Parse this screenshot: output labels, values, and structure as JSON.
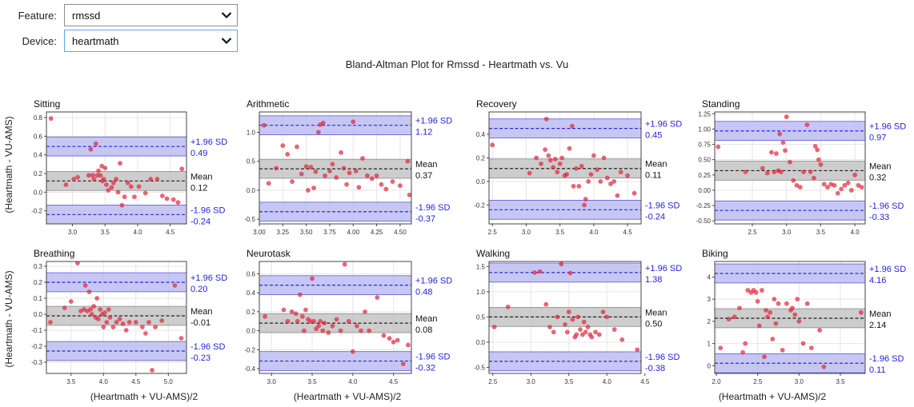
{
  "controls": {
    "feature": {
      "label": "Feature:",
      "value": "rmssd"
    },
    "device": {
      "label": "Device:",
      "value": "heartmath"
    }
  },
  "figure": {
    "suptitle": "Bland-Altman Plot for Rmssd - Heartmath vs. Vu",
    "ylabel": "(Heartmath - VU-AMS)",
    "xlabel": "(Heartmath + VU-AMS)/2"
  },
  "colors": {
    "points": "#e0293e",
    "limit_band": "#bdbdf2",
    "limit_line": "#2a2ad8",
    "mean_band": "#c4c4c4",
    "mean_line": "#222222",
    "limit_text": "#2424d8"
  },
  "chart_data": [
    {
      "type": "scatter",
      "title": "Sitting",
      "xlim": [
        2.6,
        4.75
      ],
      "ylim": [
        -0.34,
        0.86
      ],
      "xticks": [
        "3.0",
        "3.5",
        "4.0",
        "4.5"
      ],
      "xtick_values": [
        3.0,
        3.5,
        4.0,
        4.5
      ],
      "yticks": [
        "-0.2",
        "0.0",
        "0.2",
        "0.4",
        "0.6",
        "0.8"
      ],
      "ytick_values": [
        -0.2,
        0.0,
        0.2,
        0.4,
        0.6,
        0.8
      ],
      "mean": 0.12,
      "upper": 0.49,
      "lower": -0.24,
      "mean_label": "Mean",
      "mean_value": "0.12",
      "upper_label": "+1.96 SD",
      "upper_value": "0.49",
      "lower_label": "-1.96 SD",
      "lower_value": "-0.24",
      "x": [
        2.67,
        2.9,
        3.02,
        3.08,
        3.25,
        3.28,
        3.31,
        3.33,
        3.36,
        3.38,
        3.4,
        3.43,
        3.45,
        3.46,
        3.48,
        3.5,
        3.52,
        3.55,
        3.6,
        3.63,
        3.67,
        3.7,
        3.73,
        3.76,
        3.8,
        3.85,
        3.9,
        3.95,
        4.02,
        4.12,
        4.2,
        4.3,
        4.38,
        4.45,
        4.55,
        4.62,
        4.68
      ],
      "y": [
        0.79,
        0.08,
        0.14,
        0.16,
        0.18,
        0.46,
        0.18,
        0.14,
        0.52,
        0.18,
        0.23,
        0.18,
        0.28,
        0.12,
        0.14,
        0.26,
        0.08,
        0.02,
        0.05,
        0.1,
        0.14,
        0.0,
        0.31,
        -0.14,
        -0.05,
        0.1,
        0.06,
        -0.05,
        0.06,
        -0.01,
        0.14,
        0.14,
        -0.04,
        -0.07,
        -0.08,
        -0.11,
        0.25
      ]
    },
    {
      "type": "scatter",
      "title": "Arithmetic",
      "xlim": [
        3.0,
        4.62
      ],
      "ylim": [
        -0.58,
        1.35
      ],
      "xticks": [
        "3.00",
        "3.25",
        "3.50",
        "3.75",
        "4.00",
        "4.25",
        "4.50"
      ],
      "xtick_values": [
        3.0,
        3.25,
        3.5,
        3.75,
        4.0,
        4.25,
        4.5
      ],
      "yticks": [
        "-0.5",
        "0.0",
        "0.5",
        "1.0"
      ],
      "ytick_values": [
        -0.5,
        0.0,
        0.5,
        1.0
      ],
      "mean": 0.37,
      "upper": 1.12,
      "lower": -0.37,
      "mean_label": "Mean",
      "mean_value": "0.37",
      "upper_label": "+1.96 SD",
      "upper_value": "1.12",
      "lower_label": "-1.96 SD",
      "lower_value": "-0.37",
      "x": [
        3.05,
        3.1,
        3.18,
        3.25,
        3.3,
        3.35,
        3.4,
        3.45,
        3.5,
        3.52,
        3.55,
        3.58,
        3.6,
        3.63,
        3.65,
        3.68,
        3.7,
        3.75,
        3.78,
        3.82,
        3.87,
        3.9,
        3.93,
        3.96,
        4.0,
        4.03,
        4.06,
        4.1,
        4.15,
        4.2,
        4.25,
        4.3,
        4.35,
        4.42,
        4.5,
        4.58,
        4.6
      ],
      "y": [
        1.12,
        0.12,
        0.38,
        0.77,
        0.62,
        0.15,
        0.75,
        0.28,
        0.41,
        0.0,
        0.4,
        0.04,
        0.32,
        1.0,
        1.13,
        1.16,
        0.25,
        0.33,
        0.45,
        0.22,
        0.65,
        0.38,
        0.1,
        0.3,
        1.18,
        0.33,
        0.05,
        0.55,
        0.25,
        0.2,
        0.25,
        0.1,
        0.02,
        0.15,
        0.08,
        0.5,
        -0.08
      ]
    },
    {
      "type": "scatter",
      "title": "Recovery",
      "xlim": [
        2.45,
        4.7
      ],
      "ylim": [
        -0.36,
        0.59
      ],
      "xticks": [
        "2.5",
        "3.0",
        "3.5",
        "4.0",
        "4.5"
      ],
      "xtick_values": [
        2.5,
        3.0,
        3.5,
        4.0,
        4.5
      ],
      "yticks": [
        "-0.2",
        "0.0",
        "0.2",
        "0.4"
      ],
      "ytick_values": [
        -0.2,
        0.0,
        0.2,
        0.4
      ],
      "mean": 0.11,
      "upper": 0.45,
      "lower": -0.24,
      "mean_label": "Mean",
      "mean_value": "0.11",
      "upper_label": "+1.96 SD",
      "upper_value": "0.45",
      "lower_label": "-1.96 SD",
      "lower_value": "-0.24",
      "x": [
        2.5,
        3.05,
        3.15,
        3.22,
        3.28,
        3.3,
        3.33,
        3.36,
        3.4,
        3.43,
        3.46,
        3.5,
        3.53,
        3.57,
        3.6,
        3.64,
        3.68,
        3.7,
        3.74,
        3.78,
        3.82,
        3.86,
        3.88,
        3.92,
        3.96,
        4.0,
        4.05,
        4.1,
        4.15,
        4.2,
        4.25,
        4.3,
        4.35,
        4.4,
        4.5,
        4.6
      ],
      "y": [
        0.31,
        0.07,
        0.2,
        0.15,
        0.27,
        0.53,
        0.22,
        0.18,
        0.12,
        0.19,
        0.08,
        0.15,
        0.2,
        0.05,
        0.06,
        0.28,
        0.47,
        -0.04,
        0.11,
        -0.04,
        0.13,
        -0.2,
        -0.15,
        0.0,
        0.06,
        0.22,
        0.1,
        0.0,
        0.2,
        0.03,
        -0.02,
        0.0,
        -0.12,
        0.08,
        0.05,
        -0.1
      ]
    },
    {
      "type": "scatter",
      "title": "Standing",
      "xlim": [
        1.95,
        4.15
      ],
      "ylim": [
        -0.55,
        1.28
      ],
      "xticks": [
        "2.5",
        "3.0",
        "3.5",
        "4.0"
      ],
      "xtick_values": [
        2.5,
        3.0,
        3.5,
        4.0
      ],
      "yticks": [
        "-0.50",
        "-0.25",
        "0.00",
        "0.25",
        "0.50",
        "0.75",
        "1.00",
        "1.25"
      ],
      "ytick_values": [
        -0.5,
        -0.25,
        0.0,
        0.25,
        0.5,
        0.75,
        1.0,
        1.25
      ],
      "mean": 0.32,
      "upper": 0.97,
      "lower": -0.33,
      "mean_label": "Mean",
      "mean_value": "0.32",
      "upper_label": "+1.96 SD",
      "upper_value": "0.97",
      "lower_label": "-1.96 SD",
      "lower_value": "-0.33",
      "x": [
        2.0,
        2.4,
        2.65,
        2.72,
        2.78,
        2.82,
        2.85,
        2.88,
        2.9,
        2.92,
        2.95,
        2.98,
        3.0,
        3.05,
        3.1,
        3.15,
        3.2,
        3.25,
        3.3,
        3.35,
        3.4,
        3.42,
        3.45,
        3.47,
        3.5,
        3.55,
        3.6,
        3.65,
        3.7,
        3.75,
        3.8,
        3.85,
        3.9,
        3.95,
        4.0,
        4.05,
        4.1
      ],
      "y": [
        0.71,
        0.3,
        0.36,
        0.28,
        0.62,
        0.3,
        0.6,
        0.32,
        0.92,
        0.3,
        0.78,
        0.65,
        1.2,
        0.46,
        0.16,
        0.08,
        0.05,
        0.3,
        1.07,
        0.3,
        0.2,
        0.72,
        0.66,
        0.5,
        0.42,
        0.1,
        0.05,
        0.1,
        0.08,
        -0.05,
        0.02,
        0.08,
        0.12,
        0.0,
        0.25,
        0.08,
        0.05
      ]
    },
    {
      "type": "scatter",
      "title": "Breathing",
      "xlim": [
        3.12,
        5.28
      ],
      "ylim": [
        -0.37,
        0.33
      ],
      "xticks": [
        "3.5",
        "4.0",
        "4.5",
        "5.0"
      ],
      "xtick_values": [
        3.5,
        4.0,
        4.5,
        5.0
      ],
      "yticks": [
        "-0.3",
        "-0.2",
        "-0.1",
        "0.0",
        "0.1",
        "0.2",
        "0.3"
      ],
      "ytick_values": [
        -0.3,
        -0.2,
        -0.1,
        0.0,
        0.1,
        0.2,
        0.3
      ],
      "mean": -0.01,
      "upper": 0.2,
      "lower": -0.23,
      "mean_label": "Mean",
      "mean_value": "-0.01",
      "upper_label": "+1.96 SD",
      "upper_value": "0.20",
      "lower_label": "-1.96 SD",
      "lower_value": "-0.23",
      "x": [
        3.18,
        3.4,
        3.5,
        3.6,
        3.65,
        3.7,
        3.72,
        3.75,
        3.78,
        3.8,
        3.82,
        3.85,
        3.88,
        3.9,
        3.92,
        3.95,
        3.98,
        4.0,
        4.02,
        4.05,
        4.08,
        4.1,
        4.15,
        4.2,
        4.25,
        4.3,
        4.35,
        4.4,
        4.5,
        4.6,
        4.65,
        4.7,
        4.75,
        4.8,
        4.9,
        5.1,
        5.2
      ],
      "y": [
        -0.05,
        0.04,
        0.08,
        0.32,
        0.02,
        0.03,
        0.18,
        0.02,
        0.14,
        0.03,
        0.0,
        0.05,
        -0.02,
        0.1,
        -0.03,
        0.03,
        0.0,
        -0.08,
        0.01,
        -0.05,
        0.03,
        -0.02,
        -0.08,
        -0.05,
        -0.03,
        -0.06,
        -0.1,
        -0.05,
        -0.05,
        -0.08,
        -0.12,
        -0.05,
        -0.35,
        -0.08,
        -0.04,
        0.18,
        -0.15
      ]
    },
    {
      "type": "scatter",
      "title": "Neurotask",
      "xlim": [
        2.85,
        4.72
      ],
      "ylim": [
        -0.45,
        0.73
      ],
      "xticks": [
        "3.0",
        "3.5",
        "4.0",
        "4.5"
      ],
      "xtick_values": [
        3.0,
        3.5,
        4.0,
        4.5
      ],
      "yticks": [
        "-0.4",
        "-0.2",
        "0.0",
        "0.2",
        "0.4",
        "0.6"
      ],
      "ytick_values": [
        -0.4,
        -0.2,
        0.0,
        0.2,
        0.4,
        0.6
      ],
      "mean": 0.08,
      "upper": 0.48,
      "lower": -0.32,
      "mean_label": "Mean",
      "mean_value": "0.08",
      "upper_label": "+1.96 SD",
      "upper_value": "0.48",
      "lower_label": "-1.96 SD",
      "lower_value": "-0.32",
      "x": [
        2.92,
        3.15,
        3.2,
        3.25,
        3.3,
        3.32,
        3.35,
        3.38,
        3.4,
        3.42,
        3.45,
        3.48,
        3.5,
        3.52,
        3.55,
        3.58,
        3.6,
        3.63,
        3.65,
        3.7,
        3.75,
        3.8,
        3.85,
        3.9,
        3.95,
        4.0,
        4.05,
        4.1,
        4.15,
        4.2,
        4.3,
        4.38,
        4.45,
        4.5,
        4.55,
        4.62,
        4.68
      ],
      "y": [
        0.15,
        0.22,
        0.1,
        0.2,
        0.18,
        0.1,
        0.38,
        0.15,
        0.0,
        0.22,
        0.12,
        0.1,
        0.55,
        0.1,
        0.02,
        0.05,
        0.1,
        0.0,
        0.08,
        -0.02,
        0.05,
        0.12,
        0.0,
        0.7,
        0.1,
        -0.22,
        0.05,
        0.0,
        0.2,
        0.0,
        0.35,
        -0.05,
        -0.08,
        -0.12,
        -0.1,
        -0.35,
        -0.15
      ]
    },
    {
      "type": "scatter",
      "title": "Walking",
      "xlim": [
        2.45,
        4.45
      ],
      "ylim": [
        -0.62,
        1.6
      ],
      "xticks": [
        "2.5",
        "3.0",
        "3.5",
        "4.0",
        "4.5"
      ],
      "xtick_values": [
        2.5,
        3.0,
        3.5,
        4.0,
        4.5
      ],
      "yticks": [
        "-0.5",
        "0.0",
        "0.5",
        "1.0",
        "1.5"
      ],
      "ytick_values": [
        -0.5,
        0.0,
        0.5,
        1.0,
        1.5
      ],
      "mean": 0.5,
      "upper": 1.38,
      "lower": -0.38,
      "mean_label": "Mean",
      "mean_value": "0.50",
      "upper_label": "+1.96 SD",
      "upper_value": "1.38",
      "lower_label": "-1.96 SD",
      "lower_value": "-0.38",
      "x": [
        2.52,
        2.7,
        3.05,
        3.12,
        3.2,
        3.25,
        3.3,
        3.35,
        3.4,
        3.45,
        3.48,
        3.5,
        3.52,
        3.55,
        3.58,
        3.6,
        3.62,
        3.65,
        3.68,
        3.7,
        3.72,
        3.75,
        3.78,
        3.8,
        3.85,
        3.9,
        3.95,
        4.0,
        4.1,
        4.2,
        4.4
      ],
      "y": [
        0.3,
        0.7,
        1.38,
        1.4,
        0.75,
        0.3,
        0.2,
        0.5,
        1.55,
        0.35,
        0.2,
        0.6,
        1.37,
        0.45,
        0.1,
        0.15,
        0.5,
        0.25,
        0.15,
        0.4,
        0.2,
        0.3,
        0.15,
        0.1,
        0.2,
        0.15,
        0.6,
        0.5,
        0.25,
        0.05,
        -0.15
      ]
    },
    {
      "type": "scatter",
      "title": "Biking",
      "xlim": [
        1.98,
        3.8
      ],
      "ylim": [
        -0.35,
        4.7
      ],
      "xticks": [
        "2.0",
        "2.5",
        "3.0",
        "3.5"
      ],
      "xtick_values": [
        2.0,
        2.5,
        3.0,
        3.5
      ],
      "yticks": [
        "0",
        "1",
        "2",
        "3",
        "4"
      ],
      "ytick_values": [
        0,
        1,
        2,
        3,
        4
      ],
      "mean": 2.14,
      "upper": 4.16,
      "lower": 0.11,
      "mean_label": "Mean",
      "mean_value": "2.14",
      "upper_label": "+1.96 SD",
      "upper_value": "4.16",
      "lower_label": "-1.96 SD",
      "lower_value": "0.11",
      "x": [
        2.05,
        2.15,
        2.22,
        2.28,
        2.32,
        2.35,
        2.38,
        2.42,
        2.45,
        2.48,
        2.5,
        2.52,
        2.55,
        2.58,
        2.6,
        2.62,
        2.65,
        2.68,
        2.7,
        2.72,
        2.75,
        2.8,
        2.85,
        2.9,
        2.92,
        2.95,
        2.98,
        3.0,
        3.05,
        3.1,
        3.15,
        3.25,
        3.3,
        3.75
      ],
      "y": [
        0.8,
        2.1,
        2.2,
        2.6,
        0.6,
        1.0,
        3.4,
        3.3,
        3.4,
        3.3,
        2.9,
        1.8,
        3.4,
        0.4,
        2.5,
        2.2,
        2.4,
        1.2,
        3.0,
        1.9,
        2.8,
        0.7,
        2.8,
        2.5,
        2.6,
        2.3,
        3.0,
        2.0,
        1.0,
        2.8,
        0.8,
        1.6,
        -0.05,
        2.4
      ]
    }
  ]
}
